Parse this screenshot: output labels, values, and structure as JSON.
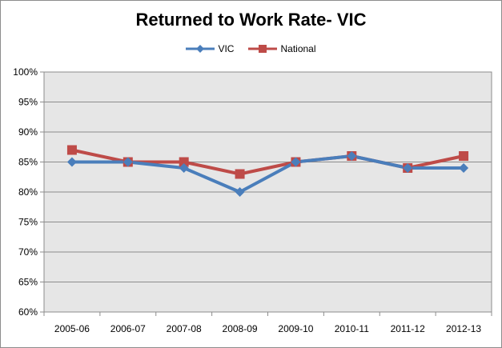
{
  "chart_data": {
    "type": "line",
    "title": "Returned to Work Rate- VIC",
    "categories": [
      "2005-06",
      "2006-07",
      "2007-08",
      "2008-09",
      "2009-10",
      "2010-11",
      "2011-12",
      "2012-13"
    ],
    "series": [
      {
        "name": "VIC",
        "values": [
          85,
          85,
          84,
          80,
          85,
          86,
          84,
          84
        ],
        "color": "#4a7ebb",
        "marker": "diamond"
      },
      {
        "name": "National",
        "values": [
          87,
          85,
          85,
          83,
          85,
          86,
          84,
          86
        ],
        "color": "#be4b48",
        "marker": "square"
      }
    ],
    "ylim": [
      60,
      100
    ],
    "ystep": 5,
    "yunit": "%",
    "grid": true,
    "legend": "top-center",
    "plot_bg": "#e6e6e6"
  }
}
